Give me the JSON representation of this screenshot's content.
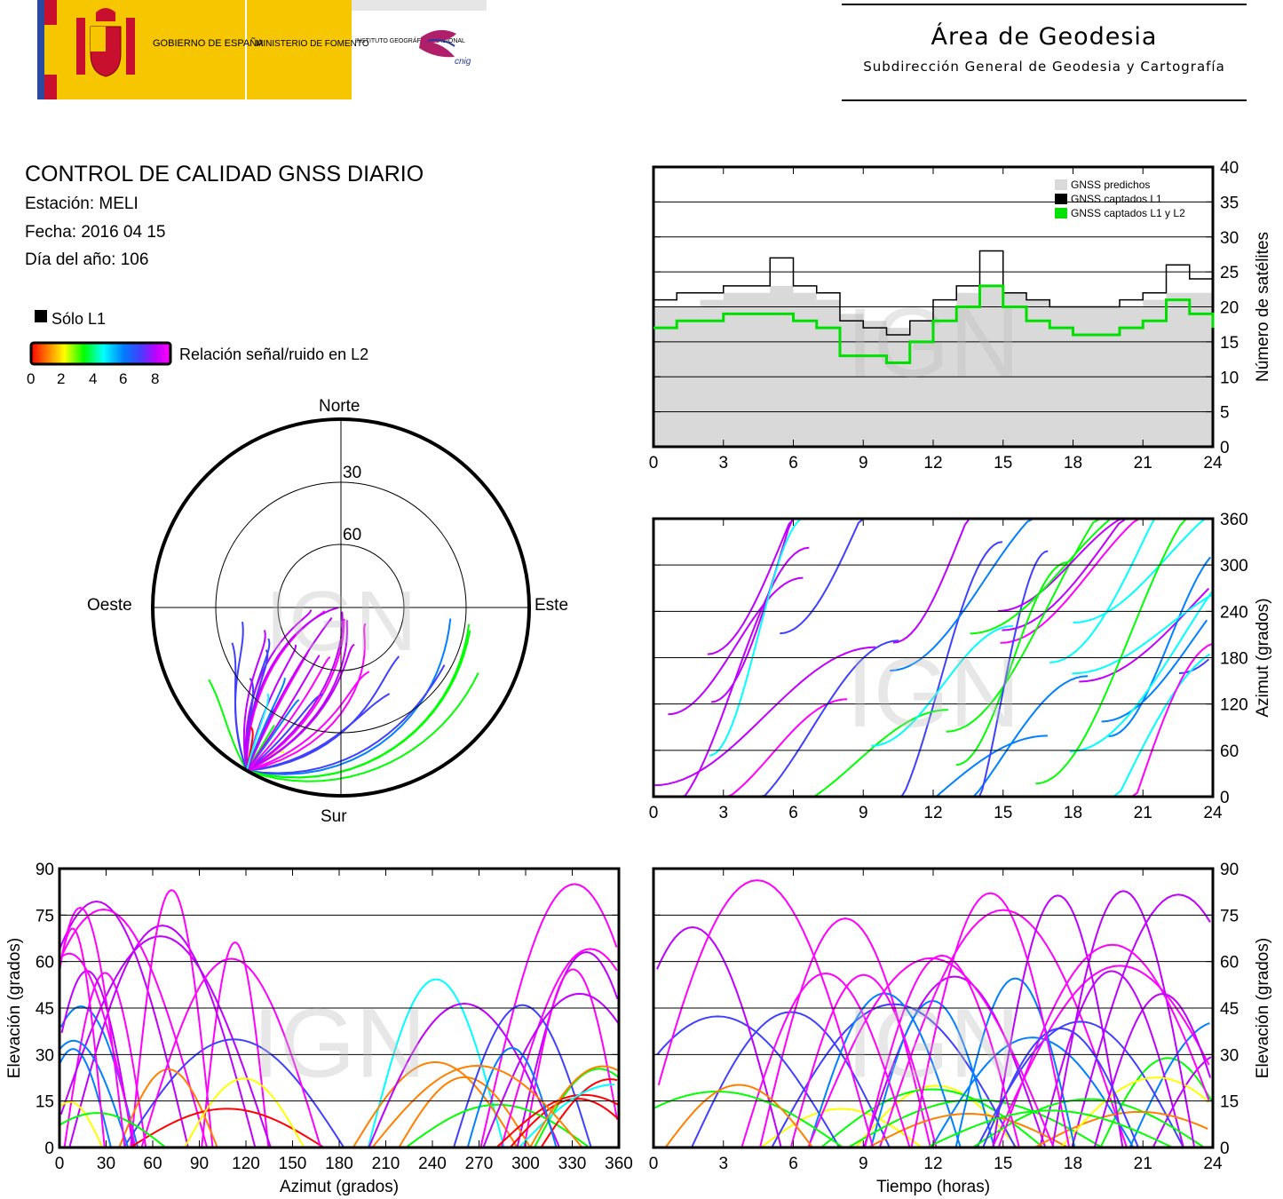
{
  "header": {
    "logo_gov": "GOBIERNO DE ESPAÑA",
    "logo_ministry": "MINISTERIO DE FOMENTO",
    "logo_ign": "INSTITUTO GEOGRÁFICO NACIONAL",
    "logo_cnig": "cnig",
    "area_title": "Área de Geodesia",
    "area_subtitle": "Subdirección General de Geodesia y Cartografía"
  },
  "info": {
    "title": "CONTROL DE CALIDAD GNSS DIARIO",
    "station": "Estación: MELI",
    "date": "Fecha: 2016 04 15",
    "doy": "Día del año: 106"
  },
  "legend": {
    "l1_only": "Sólo L1",
    "snr_label": "Relación señal/ruido en L2",
    "snr_ticks": [
      "0",
      "2",
      "4",
      "6",
      "8"
    ]
  },
  "colors": {
    "predicted": "#d9d9d9",
    "l1": "#000000",
    "l1l2": "#00e000",
    "snr_scale": [
      "#ff0000",
      "#ff8000",
      "#ffff00",
      "#00ff00",
      "#00ffff",
      "#0080ff",
      "#4040ff",
      "#c000ff",
      "#ff00ff"
    ]
  },
  "watermark": "IGN",
  "skyplot": {
    "north": "Norte",
    "south": "Sur",
    "east": "Este",
    "west": "Oeste",
    "ring_labels": [
      "30",
      "60"
    ]
  },
  "chart_data": [
    {
      "id": "satellites",
      "type": "line",
      "ylabel": "Número de satélites",
      "xlim": [
        0,
        24
      ],
      "ylim": [
        0,
        40
      ],
      "xticks": [
        "0",
        "3",
        "6",
        "9",
        "12",
        "15",
        "18",
        "21",
        "24"
      ],
      "yticks": [
        "0",
        "5",
        "10",
        "15",
        "20",
        "25",
        "30",
        "35",
        "40"
      ],
      "grid": true,
      "legend_position": "top-right",
      "x": [
        0,
        1,
        2,
        3,
        4,
        5,
        6,
        7,
        8,
        9,
        10,
        11,
        12,
        13,
        14,
        15,
        16,
        17,
        18,
        19,
        20,
        21,
        22,
        23,
        24
      ],
      "series": [
        {
          "name": "GNSS predichos",
          "values": [
            20,
            20,
            21,
            22,
            22,
            23,
            22,
            21,
            19,
            18,
            17,
            18,
            20,
            22,
            23,
            22,
            21,
            20,
            20,
            20,
            20,
            21,
            22,
            22,
            20
          ]
        },
        {
          "name": "GNSS captados L1",
          "values": [
            21,
            22,
            22,
            23,
            23,
            27,
            23,
            22,
            18,
            17,
            16,
            18,
            21,
            23,
            28,
            22,
            21,
            20,
            20,
            20,
            21,
            22,
            26,
            24,
            20
          ]
        },
        {
          "name": "GNSS captados L1 y L2",
          "values": [
            17,
            18,
            18,
            19,
            19,
            19,
            18,
            17,
            13,
            13,
            12,
            15,
            18,
            20,
            23,
            20,
            18,
            17,
            16,
            16,
            17,
            18,
            21,
            19,
            17
          ]
        }
      ]
    },
    {
      "id": "azimuth-time",
      "type": "scatter",
      "ylabel": "Azimut (grados)",
      "xlim": [
        0,
        24
      ],
      "ylim": [
        0,
        360
      ],
      "xticks": [
        "0",
        "3",
        "6",
        "9",
        "12",
        "15",
        "18",
        "21",
        "24"
      ],
      "yticks": [
        "0",
        "60",
        "120",
        "180",
        "240",
        "300",
        "360"
      ],
      "grid": true
    },
    {
      "id": "elevation-azimuth",
      "type": "scatter",
      "xlabel": "Azimut (grados)",
      "ylabel": "Elevación (grados)",
      "xlim": [
        0,
        360
      ],
      "ylim": [
        0,
        90
      ],
      "xticks": [
        "0",
        "30",
        "60",
        "90",
        "120",
        "150",
        "180",
        "210",
        "240",
        "270",
        "300",
        "330",
        "360"
      ],
      "yticks": [
        "0",
        "15",
        "30",
        "45",
        "60",
        "75",
        "90"
      ],
      "grid": true
    },
    {
      "id": "elevation-time",
      "type": "scatter",
      "xlabel": "Tiempo (horas)",
      "ylabel": "Elevación (grados)",
      "xlim": [
        0,
        24
      ],
      "ylim": [
        0,
        90
      ],
      "xticks": [
        "0",
        "3",
        "6",
        "9",
        "12",
        "15",
        "18",
        "21",
        "24"
      ],
      "yticks": [
        "0",
        "15",
        "30",
        "45",
        "60",
        "75",
        "90"
      ],
      "grid": true
    }
  ]
}
